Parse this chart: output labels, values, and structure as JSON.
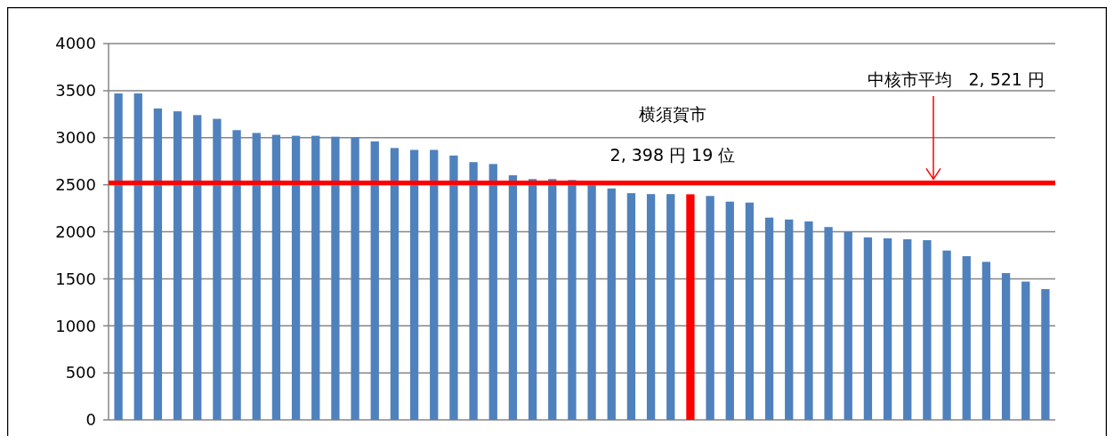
{
  "chart_data": {
    "type": "bar",
    "categories": [
      null,
      null,
      null,
      null,
      null,
      null,
      null,
      null,
      null,
      null,
      null,
      null,
      null,
      null,
      null,
      null,
      null,
      null,
      null,
      null,
      null,
      null,
      null,
      null,
      null,
      null,
      null,
      null,
      null,
      null,
      null,
      null,
      null,
      null,
      null,
      null,
      null,
      null,
      null,
      null,
      null,
      null,
      null,
      null,
      null,
      null,
      null,
      null
    ],
    "values": [
      3470,
      3470,
      3310,
      3280,
      3240,
      3200,
      3080,
      3050,
      3030,
      3020,
      3020,
      3010,
      3000,
      2960,
      2890,
      2870,
      2870,
      2810,
      2740,
      2720,
      2600,
      2560,
      2560,
      2550,
      2510,
      2460,
      2410,
      2400,
      2400,
      2398,
      2380,
      2320,
      2310,
      2150,
      2130,
      2110,
      2050,
      2000,
      1940,
      1930,
      1920,
      1910,
      1800,
      1740,
      1680,
      1560,
      1470,
      1390
    ],
    "colors": [
      "#4f81bd",
      "#4f81bd",
      "#4f81bd",
      "#4f81bd",
      "#4f81bd",
      "#4f81bd",
      "#4f81bd",
      "#4f81bd",
      "#4f81bd",
      "#4f81bd",
      "#4f81bd",
      "#4f81bd",
      "#4f81bd",
      "#4f81bd",
      "#4f81bd",
      "#4f81bd",
      "#4f81bd",
      "#4f81bd",
      "#4f81bd",
      "#4f81bd",
      "#4f81bd",
      "#4f81bd",
      "#4f81bd",
      "#4f81bd",
      "#4f81bd",
      "#4f81bd",
      "#4f81bd",
      "#4f81bd",
      "#4f81bd",
      "#ff0000",
      "#4f81bd",
      "#4f81bd",
      "#4f81bd",
      "#4f81bd",
      "#4f81bd",
      "#4f81bd",
      "#4f81bd",
      "#4f81bd",
      "#4f81bd",
      "#4f81bd",
      "#4f81bd",
      "#4f81bd",
      "#4f81bd",
      "#4f81bd",
      "#4f81bd",
      "#4f81bd",
      "#4f81bd",
      "#4f81bd"
    ],
    "ylim": [
      0,
      4000
    ],
    "yticks": [
      0,
      500,
      1000,
      1500,
      2000,
      2500,
      3000,
      3500,
      4000
    ],
    "grid": "y",
    "ref_lines": [
      {
        "axis": "y",
        "value": 2521,
        "label": "中核市平均　2, 521 円",
        "color": "#ff0000"
      }
    ],
    "annotations": [
      "横須賀市",
      "2, 398 円 19 位"
    ]
  }
}
